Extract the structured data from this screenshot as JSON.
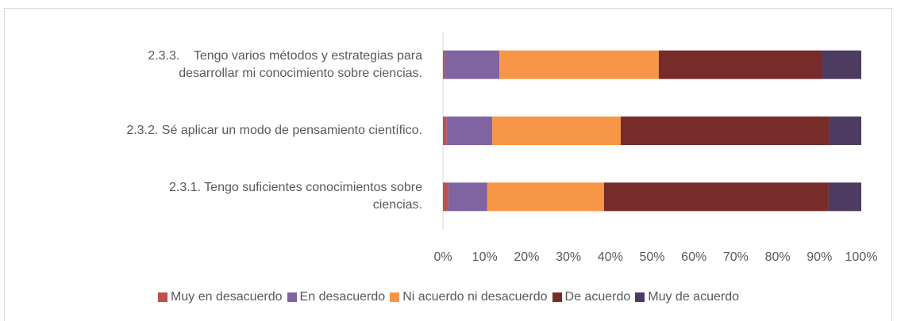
{
  "chart_data": {
    "type": "stacked_barh",
    "categories": [
      "2.3.3.    Tengo varios métodos y estrategias para\ndesarrollar mi conocimiento sobre ciencias.",
      "2.3.2. Sé aplicar un modo de pensamiento científico.",
      "2.3.1. Tengo suficientes conocimientos sobre\nciencias."
    ],
    "series": [
      {
        "name": "Muy en desacuerdo",
        "color": "#c0504d",
        "values": [
          0.4,
          0.9,
          1.3
        ]
      },
      {
        "name": "En desacuerdo",
        "color": "#8064a2",
        "values": [
          13.1,
          10.9,
          9.3
        ]
      },
      {
        "name": "Ni acuerdo ni desacuerdo",
        "color": "#f79646",
        "values": [
          38.1,
          30.7,
          27.9
        ]
      },
      {
        "name": "De acuerdo",
        "color": "#772c2a",
        "values": [
          39.1,
          49.9,
          53.7
        ]
      },
      {
        "name": "Muy de acuerdo",
        "color": "#4d3b62",
        "values": [
          9.3,
          7.6,
          7.8
        ]
      }
    ],
    "xlim": [
      0,
      100
    ],
    "xticks": [
      {
        "value": 0,
        "label": "0%"
      },
      {
        "value": 10,
        "label": "10%"
      },
      {
        "value": 20,
        "label": "20%"
      },
      {
        "value": 30,
        "label": "30%"
      },
      {
        "value": 40,
        "label": "40%"
      },
      {
        "value": 50,
        "label": "50%"
      },
      {
        "value": 60,
        "label": "60%"
      },
      {
        "value": 70,
        "label": "70%"
      },
      {
        "value": 80,
        "label": "80%"
      },
      {
        "value": 90,
        "label": "90%"
      },
      {
        "value": 100,
        "label": "100%"
      }
    ],
    "legend": "bottom"
  }
}
